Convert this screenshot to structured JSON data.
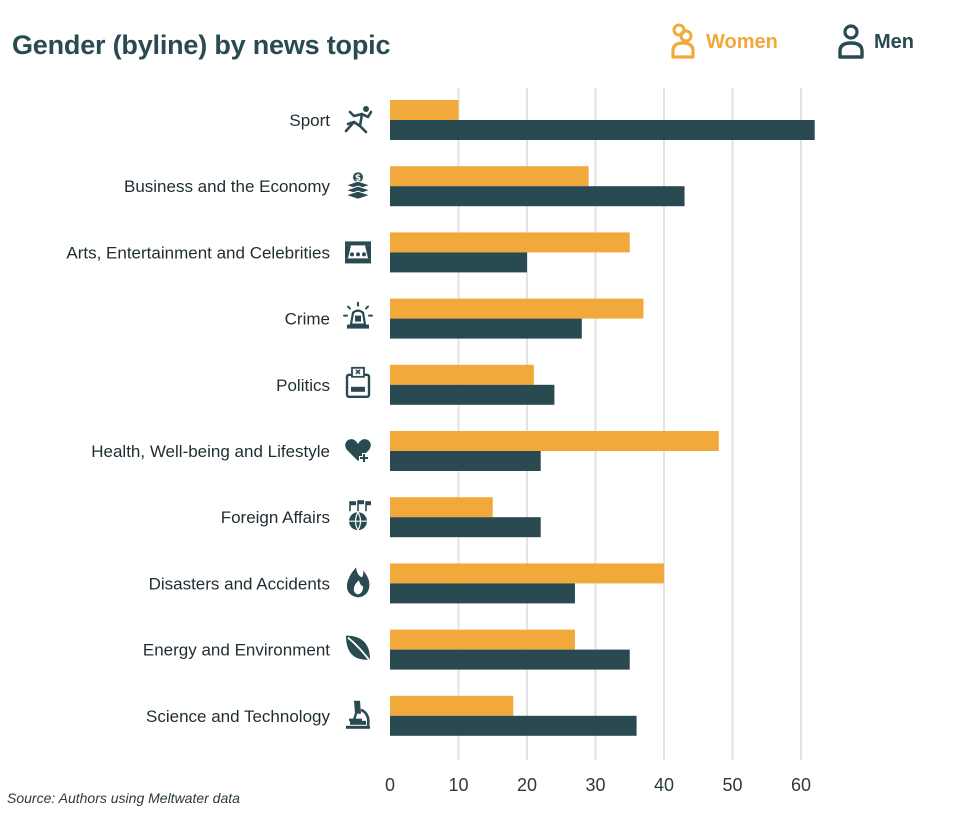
{
  "header": {
    "title": "Gender (byline) by news topic"
  },
  "legend": {
    "women": {
      "label": "Women",
      "color": "#f2a93b",
      "icon": "woman-icon"
    },
    "men": {
      "label": "Men",
      "color": "#2a4a52",
      "icon": "man-icon"
    }
  },
  "source": "Source: Authors using Meltwater data",
  "chart_data": {
    "type": "bar",
    "orientation": "horizontal",
    "title": "Gender (byline) by news topic",
    "xlabel": "",
    "ylabel": "",
    "xlim": [
      0,
      65
    ],
    "xticks": [
      0,
      10,
      20,
      30,
      40,
      50,
      60
    ],
    "grid": true,
    "legend_position": "top-right",
    "categories": [
      "Sport",
      "Business and the Economy",
      "Arts, Entertainment and Celebrities",
      "Crime",
      "Politics",
      "Health, Well-being and Lifestyle",
      "Foreign Affairs",
      "Disasters and Accidents",
      "Energy and Environment",
      "Science and Technology"
    ],
    "category_icons": [
      "running-athlete-icon",
      "money-stack-icon",
      "theatre-stage-icon",
      "siren-icon",
      "ballot-box-icon",
      "heart-plus-icon",
      "globe-flags-icon",
      "flame-icon",
      "leaf-icon",
      "microscope-icon"
    ],
    "series": [
      {
        "name": "Women",
        "color": "#f2a93b",
        "values": [
          10,
          29,
          35,
          37,
          21,
          48,
          15,
          40,
          27,
          18
        ]
      },
      {
        "name": "Men",
        "color": "#2a4a52",
        "values": [
          62,
          43,
          20,
          28,
          24,
          22,
          22,
          27,
          35,
          36
        ]
      }
    ]
  }
}
